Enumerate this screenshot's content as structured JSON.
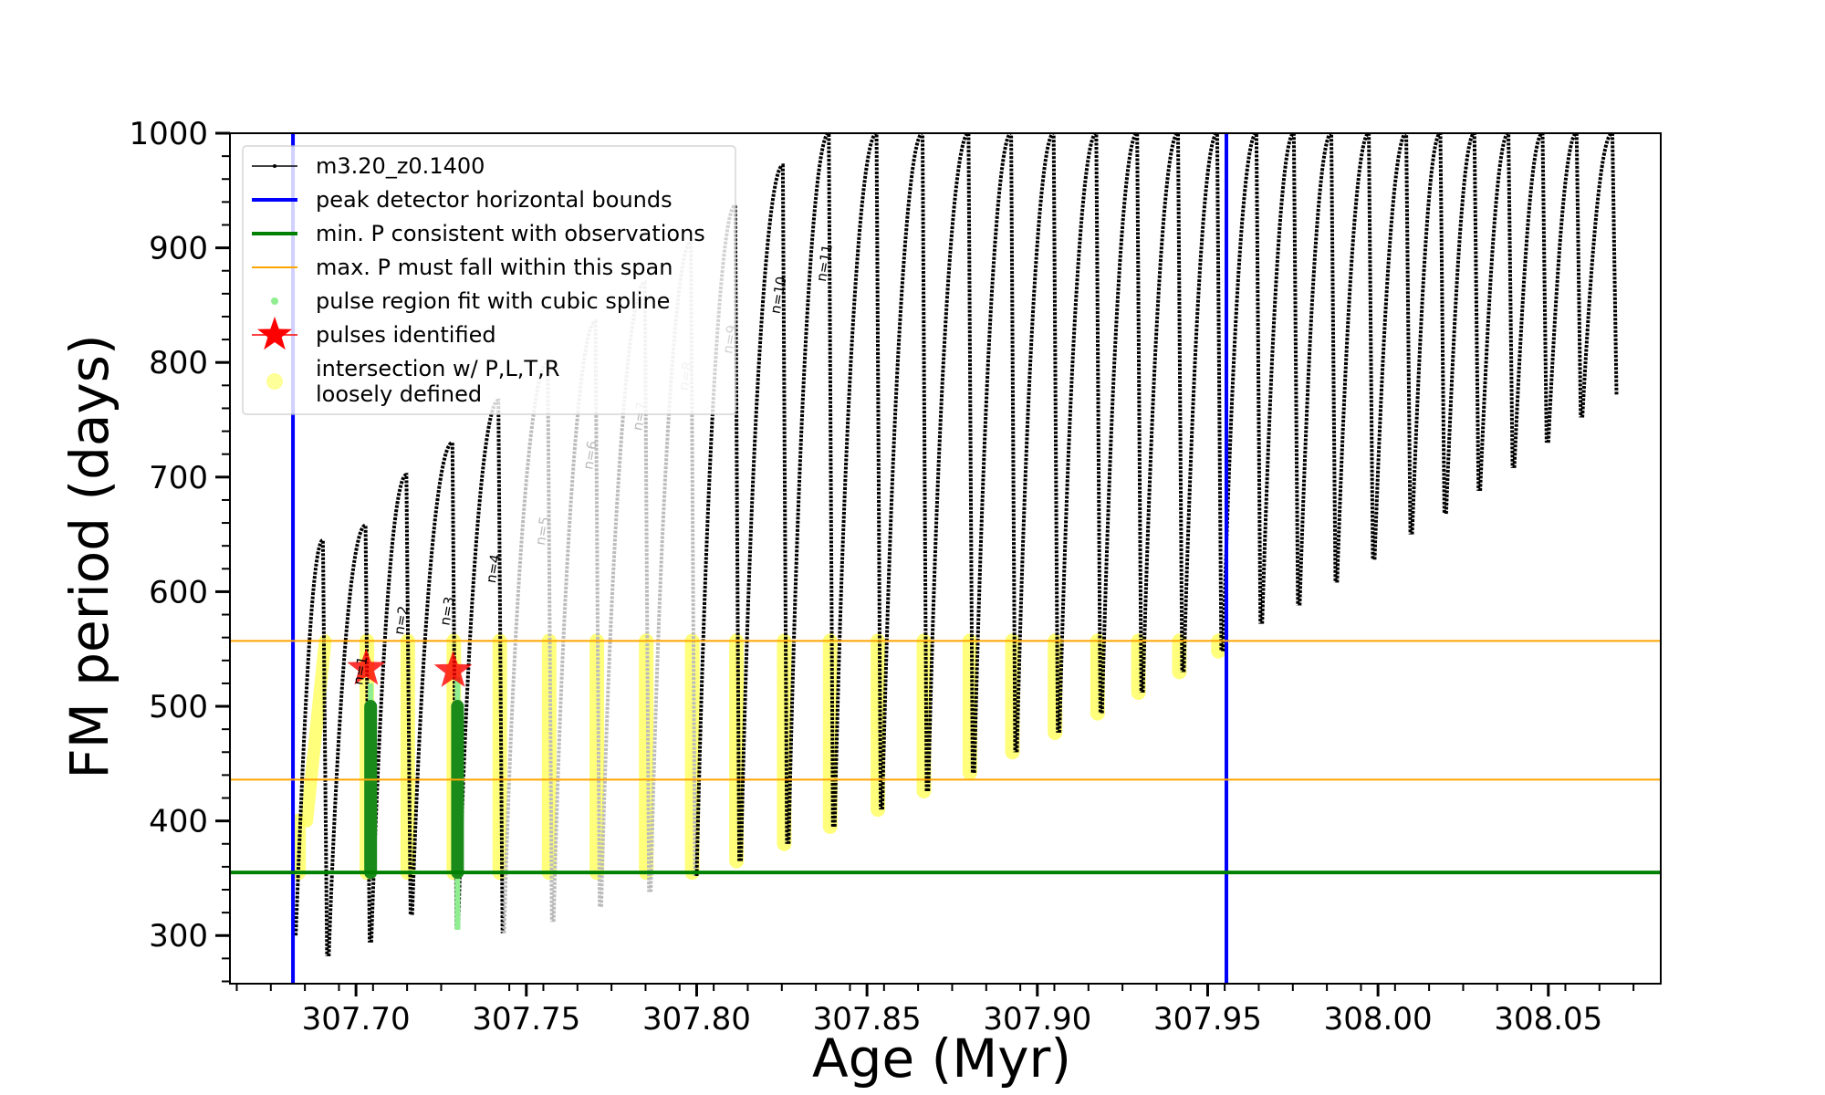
{
  "chart_data": {
    "type": "scatter",
    "title": "",
    "xlabel": "Age (Myr)",
    "ylabel": "FM period (days)",
    "xlim": [
      307.663,
      308.083
    ],
    "ylim": [
      258,
      1000
    ],
    "x_ticks": [
      "307.70",
      "307.75",
      "307.80",
      "307.85",
      "307.90",
      "307.95",
      "308.00",
      "308.05"
    ],
    "x_tick_values": [
      307.7,
      307.75,
      307.8,
      307.85,
      307.9,
      307.95,
      308.0,
      308.05
    ],
    "y_ticks": [
      "300",
      "400",
      "500",
      "600",
      "700",
      "800",
      "900",
      "1000"
    ],
    "y_tick_values": [
      300,
      400,
      500,
      600,
      700,
      800,
      900,
      1000
    ],
    "grid": false,
    "legend_position": "upper-left",
    "legend": [
      {
        "label": "m3.20_z0.1400",
        "kind": "line-dot",
        "color": "#000000"
      },
      {
        "label": "peak detector horizontal bounds",
        "kind": "line",
        "color": "#0000ff"
      },
      {
        "label": "min. P consistent with observations",
        "kind": "line",
        "color": "#008000"
      },
      {
        "label": "max. P must fall within this span",
        "kind": "thin-line",
        "color": "#ffa500"
      },
      {
        "label": "pulse region fit with cubic spline",
        "kind": "small-dot",
        "color": "#90ee90"
      },
      {
        "label": "pulses identified",
        "kind": "star",
        "color": "#ff0000"
      },
      {
        "label": "intersection w/ P,L,T,R",
        "label2": "loosely defined",
        "kind": "big-dot",
        "color": "#ffff99"
      }
    ],
    "reference_lines": {
      "vertical": [
        307.6815,
        307.9555
      ],
      "green_horizontal": 355,
      "orange_horizontal": [
        436,
        557
      ]
    },
    "pulses": [
      {
        "x0": 307.6818,
        "peak_x": 307.6915,
        "peak_y": 645,
        "min_y": 282,
        "sep_label": "",
        "faded": false
      },
      {
        "peak_x": 307.704,
        "peak_y": 658,
        "min_y": 294,
        "sep_label": "n=1",
        "faded": false
      },
      {
        "peak_x": 307.716,
        "peak_y": 702,
        "min_y": 318,
        "sep_label": "n=2",
        "faded": false
      },
      {
        "peak_x": 307.7295,
        "peak_y": 730,
        "min_y": 306,
        "sep_label": "n=3",
        "faded": false
      },
      {
        "peak_x": 307.743,
        "peak_y": 767,
        "min_y": 302,
        "sep_label": "n=4",
        "faded": false
      },
      {
        "peak_x": 307.7575,
        "peak_y": 800,
        "min_y": 312,
        "sep_label": "n=5",
        "faded": true
      },
      {
        "peak_x": 307.7715,
        "peak_y": 836,
        "min_y": 325,
        "sep_label": "n=6",
        "faded": true
      },
      {
        "peak_x": 307.786,
        "peak_y": 870,
        "min_y": 338,
        "sep_label": "n=7",
        "faded": true
      },
      {
        "peak_x": 307.7995,
        "peak_y": 905,
        "min_y": 352,
        "sep_label": "n=8",
        "faded": true
      },
      {
        "peak_x": 307.8125,
        "peak_y": 937,
        "min_y": 365,
        "sep_label": "n=9",
        "faded": false
      },
      {
        "peak_x": 307.8265,
        "peak_y": 972,
        "min_y": 380,
        "sep_label": "n=10",
        "faded": false
      },
      {
        "peak_x": 307.84,
        "peak_y": 1000,
        "min_y": 395,
        "sep_label": "n=11",
        "faded": false
      },
      {
        "peak_x": 307.854,
        "peak_y": 1000,
        "min_y": 410,
        "sep_label": "",
        "faded": false
      },
      {
        "peak_x": 307.8675,
        "peak_y": 1000,
        "min_y": 426,
        "sep_label": "",
        "faded": false
      },
      {
        "peak_x": 307.881,
        "peak_y": 1000,
        "min_y": 442,
        "sep_label": "",
        "faded": false
      },
      {
        "peak_x": 307.8935,
        "peak_y": 1000,
        "min_y": 460,
        "sep_label": "",
        "faded": false
      },
      {
        "peak_x": 307.906,
        "peak_y": 1000,
        "min_y": 477,
        "sep_label": "",
        "faded": false
      },
      {
        "peak_x": 307.9185,
        "peak_y": 1000,
        "min_y": 494,
        "sep_label": "",
        "faded": false
      },
      {
        "peak_x": 307.9305,
        "peak_y": 1000,
        "min_y": 512,
        "sep_label": "",
        "faded": false
      },
      {
        "peak_x": 307.9425,
        "peak_y": 1000,
        "min_y": 530,
        "sep_label": "",
        "faded": false
      },
      {
        "peak_x": 307.954,
        "peak_y": 1000,
        "min_y": 548,
        "sep_label": "",
        "faded": false
      },
      {
        "peak_x": 307.9655,
        "peak_y": 1000,
        "min_y": 572,
        "sep_label": "",
        "faded": false
      },
      {
        "peak_x": 307.9765,
        "peak_y": 1000,
        "min_y": 588,
        "sep_label": "",
        "faded": false
      },
      {
        "peak_x": 307.9875,
        "peak_y": 1000,
        "min_y": 608,
        "sep_label": "",
        "faded": false
      },
      {
        "peak_x": 307.9985,
        "peak_y": 1000,
        "min_y": 628,
        "sep_label": "",
        "faded": false
      },
      {
        "peak_x": 308.0095,
        "peak_y": 1000,
        "min_y": 650,
        "sep_label": "",
        "faded": false
      },
      {
        "peak_x": 308.0195,
        "peak_y": 1000,
        "min_y": 668,
        "sep_label": "",
        "faded": false
      },
      {
        "peak_x": 308.0295,
        "peak_y": 1000,
        "min_y": 688,
        "sep_label": "",
        "faded": false
      },
      {
        "peak_x": 308.0395,
        "peak_y": 1000,
        "min_y": 708,
        "sep_label": "",
        "faded": false
      },
      {
        "peak_x": 308.0495,
        "peak_y": 1000,
        "min_y": 730,
        "sep_label": "",
        "faded": false
      },
      {
        "peak_x": 308.0595,
        "peak_y": 1000,
        "min_y": 752,
        "sep_label": "",
        "faded": false
      },
      {
        "peak_x": 308.07,
        "peak_y": 1000,
        "min_y": 772,
        "sep_label": "",
        "faded": false
      }
    ],
    "green_spline_regions": [
      {
        "x": 307.7043,
        "y_top": 520,
        "y_bottom": 355
      },
      {
        "x": 307.7298,
        "y_top": 525,
        "y_bottom": 305
      }
    ],
    "pulses_identified": [
      {
        "x": 307.703,
        "y": 533
      },
      {
        "x": 307.7285,
        "y": 531
      }
    ]
  }
}
